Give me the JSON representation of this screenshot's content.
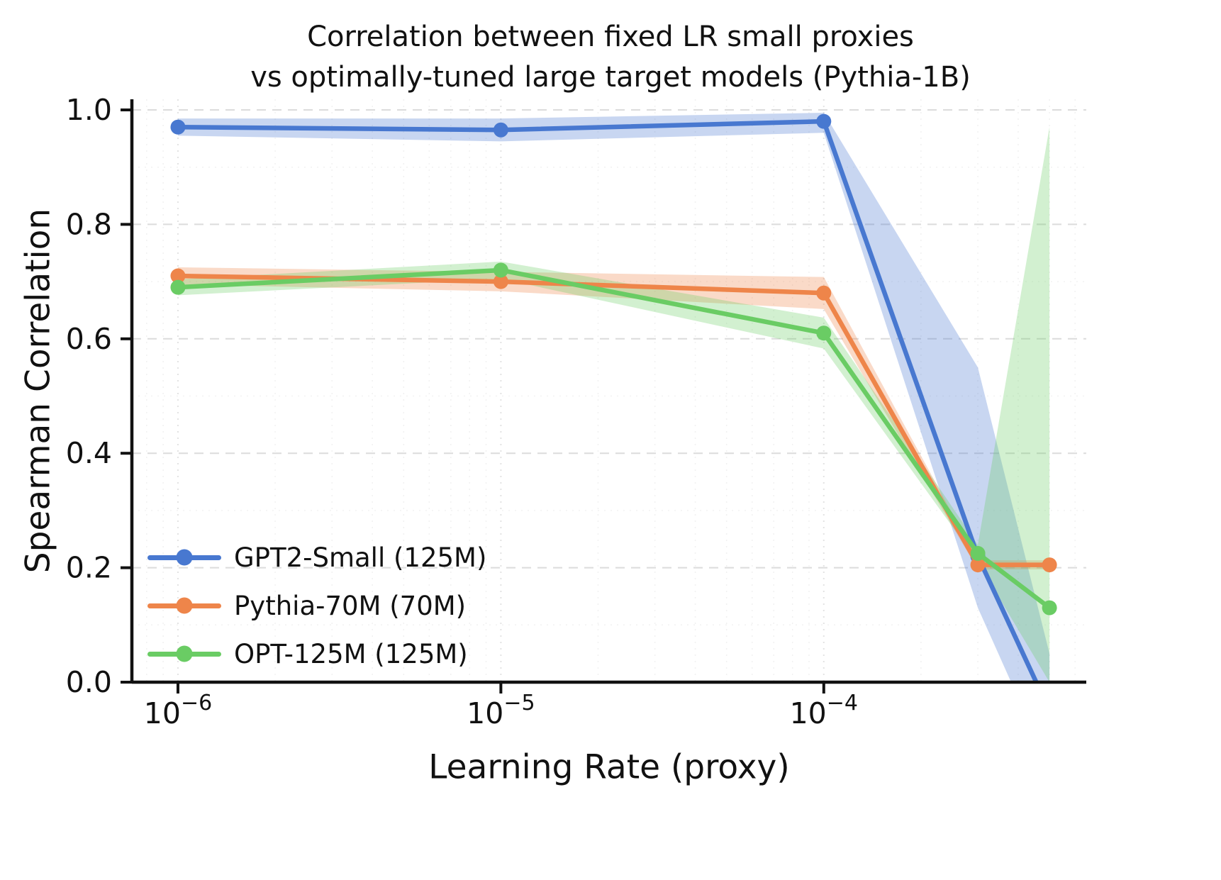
{
  "figure": {
    "title_line1": "Correlation between fixed LR small proxies",
    "title_line2": "vs optimally-tuned large target models (Pythia-1B)"
  },
  "chart_data": {
    "type": "line",
    "title": "Correlation between fixed LR small proxies vs optimally-tuned large target models (Pythia-1B)",
    "xlabel": "Learning Rate (proxy)",
    "ylabel": "Spearman Correlation",
    "x_scale": "log",
    "grid": true,
    "legend_position": "lower left",
    "xlim": [
      7.2e-07,
      0.00065
    ],
    "ylim": [
      0.0,
      1.0
    ],
    "x": [
      1e-06,
      1e-05,
      0.0001,
      0.0003,
      0.0005
    ],
    "x_ticks": [
      {
        "value": 1e-06,
        "base": "10",
        "exp": "−6"
      },
      {
        "value": 1e-05,
        "base": "10",
        "exp": "−5"
      },
      {
        "value": 0.0001,
        "base": "10",
        "exp": "−4"
      }
    ],
    "y_ticks": [
      {
        "value": 0.0,
        "label": "0.0"
      },
      {
        "value": 0.2,
        "label": "0.2"
      },
      {
        "value": 0.4,
        "label": "0.4"
      },
      {
        "value": 0.6,
        "label": "0.6"
      },
      {
        "value": 0.8,
        "label": "0.8"
      },
      {
        "value": 1.0,
        "label": "1.0"
      }
    ],
    "series": [
      {
        "name": "GPT2-Small (125M)",
        "color": "#4878d0",
        "values": [
          0.97,
          0.965,
          0.98,
          0.22,
          -0.05
        ],
        "band_lower": [
          0.955,
          0.945,
          0.96,
          0.13,
          -0.15
        ],
        "band_upper": [
          0.985,
          0.985,
          0.995,
          0.55,
          0.05
        ]
      },
      {
        "name": "Pythia-70M (70M)",
        "color": "#ee854a",
        "values": [
          0.71,
          0.7,
          0.68,
          0.205,
          0.205
        ],
        "band_lower": [
          0.695,
          0.683,
          0.652,
          0.197,
          0.197
        ],
        "band_upper": [
          0.725,
          0.717,
          0.708,
          0.213,
          0.213
        ]
      },
      {
        "name": "OPT-125M (125M)",
        "color": "#6acc64",
        "values": [
          0.69,
          0.72,
          0.61,
          0.225,
          0.13
        ],
        "band_lower": [
          0.676,
          0.705,
          0.583,
          0.21,
          0.0
        ],
        "band_upper": [
          0.704,
          0.735,
          0.637,
          0.24,
          0.97
        ]
      }
    ]
  }
}
